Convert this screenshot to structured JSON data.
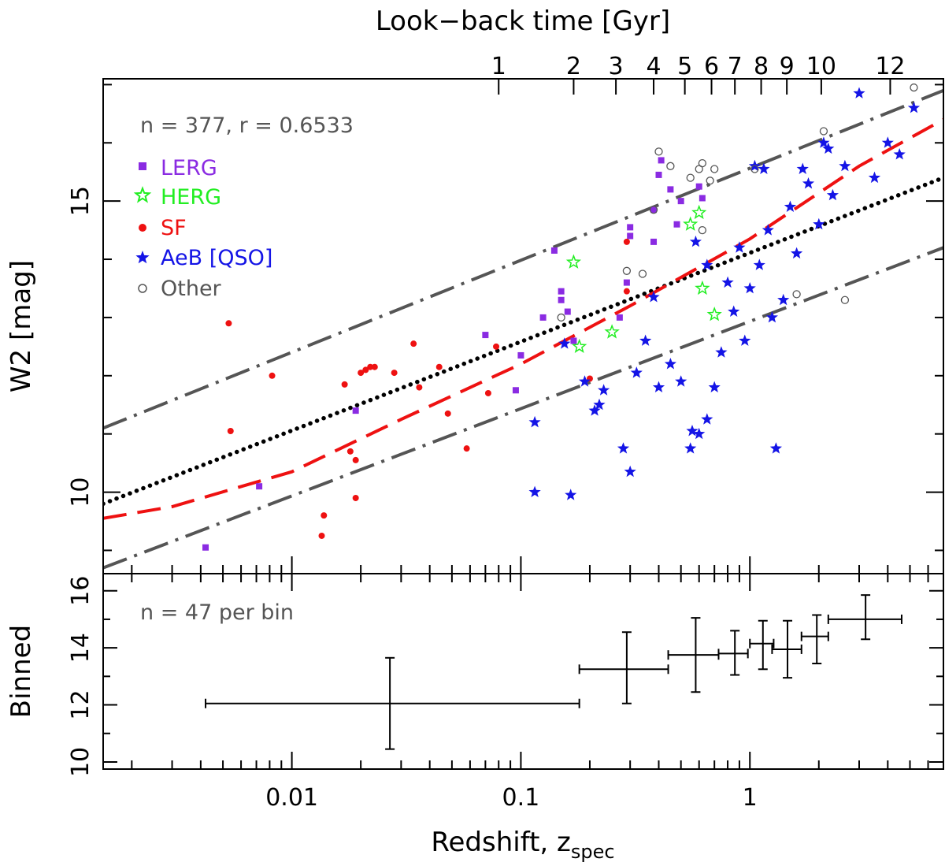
{
  "chart_data": [
    {
      "type": "scatter",
      "panel": "main",
      "xlabel": "Redshift, z",
      "xlabel_sub": "spec",
      "ylabel": "W2 [mag]",
      "top_axis_label": "Look−back time [Gyr]",
      "x_scale": "log",
      "xlim": [
        0.0015,
        7
      ],
      "ylim": [
        8.6,
        17.1
      ],
      "x_ticks": [
        0.01,
        0.1,
        1
      ],
      "x_tick_labels": [
        "0.01",
        "0.1",
        "1"
      ],
      "y_ticks": [
        10,
        15
      ],
      "y_tick_labels": [
        "10",
        "15"
      ],
      "top_ticks": [
        1,
        2,
        3,
        4,
        5,
        6,
        7,
        8,
        9,
        10,
        12
      ],
      "top_tick_labels": [
        "1",
        "2",
        "3",
        "4",
        "5",
        "6",
        "7",
        "8",
        "9",
        "10",
        "12"
      ],
      "annotation": "n = 377, r = 0.6533",
      "legend_position": "top-left",
      "series": [
        {
          "name": "LERG",
          "color": "#8a2be2",
          "marker": "square",
          "points": [
            [
              0.0042,
              9.05
            ],
            [
              0.0072,
              10.1
            ],
            [
              0.019,
              11.4
            ],
            [
              0.07,
              12.7
            ],
            [
              0.095,
              11.75
            ],
            [
              0.1,
              12.35
            ],
            [
              0.125,
              13.0
            ],
            [
              0.14,
              14.15
            ],
            [
              0.15,
              13.3
            ],
            [
              0.15,
              13.45
            ],
            [
              0.16,
              13.1
            ],
            [
              0.17,
              12.6
            ],
            [
              0.27,
              13.0
            ],
            [
              0.29,
              13.6
            ],
            [
              0.3,
              14.4
            ],
            [
              0.3,
              14.55
            ],
            [
              0.38,
              14.3
            ],
            [
              0.38,
              14.85
            ],
            [
              0.4,
              15.45
            ],
            [
              0.41,
              15.7
            ],
            [
              0.45,
              15.2
            ],
            [
              0.5,
              15.0
            ],
            [
              0.6,
              15.25
            ],
            [
              0.62,
              15.05
            ],
            [
              0.48,
              14.6
            ]
          ]
        },
        {
          "name": "HERG",
          "color": "#22ee22",
          "marker": "star-open",
          "points": [
            [
              0.17,
              13.95
            ],
            [
              0.18,
              12.5
            ],
            [
              0.25,
              12.75
            ],
            [
              0.55,
              14.6
            ],
            [
              0.6,
              14.8
            ],
            [
              0.62,
              13.5
            ],
            [
              0.7,
              13.05
            ]
          ]
        },
        {
          "name": "SF",
          "color": "#ee1111",
          "marker": "dot",
          "points": [
            [
              0.0053,
              12.9
            ],
            [
              0.0054,
              11.05
            ],
            [
              0.0082,
              12.0
            ],
            [
              0.0135,
              9.25
            ],
            [
              0.0138,
              9.6
            ],
            [
              0.017,
              11.85
            ],
            [
              0.018,
              10.7
            ],
            [
              0.019,
              10.55
            ],
            [
              0.019,
              9.9
            ],
            [
              0.02,
              12.05
            ],
            [
              0.021,
              12.1
            ],
            [
              0.022,
              12.15
            ],
            [
              0.023,
              12.15
            ],
            [
              0.028,
              12.05
            ],
            [
              0.034,
              12.55
            ],
            [
              0.036,
              11.8
            ],
            [
              0.044,
              12.15
            ],
            [
              0.048,
              11.35
            ],
            [
              0.058,
              10.75
            ],
            [
              0.072,
              11.7
            ],
            [
              0.078,
              12.5
            ],
            [
              0.2,
              11.95
            ],
            [
              0.29,
              13.45
            ],
            [
              0.29,
              14.3
            ]
          ]
        },
        {
          "name": "AeB [QSO]",
          "color": "#1414e6",
          "marker": "star",
          "points": [
            [
              0.115,
              10.0
            ],
            [
              0.115,
              11.2
            ],
            [
              0.155,
              12.55
            ],
            [
              0.165,
              9.95
            ],
            [
              0.19,
              11.9
            ],
            [
              0.21,
              11.4
            ],
            [
              0.22,
              11.5
            ],
            [
              0.23,
              11.75
            ],
            [
              0.28,
              10.75
            ],
            [
              0.3,
              10.35
            ],
            [
              0.32,
              12.05
            ],
            [
              0.35,
              12.6
            ],
            [
              0.38,
              13.35
            ],
            [
              0.4,
              11.8
            ],
            [
              0.45,
              12.2
            ],
            [
              0.5,
              11.9
            ],
            [
              0.55,
              10.75
            ],
            [
              0.56,
              11.05
            ],
            [
              0.6,
              11.0
            ],
            [
              0.65,
              11.25
            ],
            [
              0.7,
              11.8
            ],
            [
              0.75,
              12.4
            ],
            [
              0.8,
              13.6
            ],
            [
              0.9,
              14.2
            ],
            [
              1.0,
              13.5
            ],
            [
              1.1,
              13.9
            ],
            [
              1.2,
              14.5
            ],
            [
              1.3,
              10.75
            ],
            [
              1.4,
              13.3
            ],
            [
              1.5,
              14.9
            ],
            [
              1.6,
              14.1
            ],
            [
              1.8,
              15.3
            ],
            [
              2.0,
              14.6
            ],
            [
              2.1,
              16.0
            ],
            [
              2.3,
              15.1
            ],
            [
              2.6,
              15.6
            ],
            [
              3.0,
              16.85
            ],
            [
              3.5,
              15.4
            ],
            [
              4.0,
              16.0
            ],
            [
              4.5,
              15.8
            ],
            [
              5.2,
              16.6
            ],
            [
              1.05,
              15.6
            ],
            [
              1.15,
              15.55
            ],
            [
              1.7,
              15.55
            ],
            [
              2.2,
              15.9
            ],
            [
              1.25,
              13.0
            ],
            [
              0.95,
              12.6
            ],
            [
              0.85,
              13.1
            ],
            [
              0.65,
              13.9
            ],
            [
              0.58,
              14.3
            ]
          ]
        },
        {
          "name": "Other",
          "color": "#555555",
          "marker": "circle-open",
          "points": [
            [
              0.15,
              13.0
            ],
            [
              0.29,
              13.8
            ],
            [
              0.34,
              13.75
            ],
            [
              0.38,
              14.85
            ],
            [
              0.4,
              15.85
            ],
            [
              0.45,
              15.6
            ],
            [
              0.55,
              15.4
            ],
            [
              0.6,
              15.55
            ],
            [
              0.62,
              15.65
            ],
            [
              0.67,
              15.35
            ],
            [
              0.7,
              15.55
            ],
            [
              1.05,
              15.55
            ],
            [
              2.1,
              16.2
            ],
            [
              2.6,
              13.3
            ],
            [
              5.2,
              16.95
            ],
            [
              1.6,
              13.4
            ],
            [
              0.62,
              14.5
            ]
          ]
        }
      ],
      "fit_lines": [
        {
          "name": "dotted-fit",
          "color": "#000000",
          "style": "dotted",
          "x": [
            0.0015,
            7
          ],
          "y": [
            9.8,
            15.4
          ]
        },
        {
          "name": "dashed-fit",
          "color": "#ee1111",
          "style": "dashed",
          "x": [
            0.0015,
            0.003,
            0.01,
            0.03,
            0.1,
            0.3,
            1,
            3,
            7
          ],
          "y": [
            9.55,
            9.75,
            10.35,
            11.25,
            12.2,
            13.2,
            14.35,
            15.6,
            16.4
          ]
        },
        {
          "name": "upper-envelope",
          "color": "#555555",
          "style": "dashdot",
          "x": [
            0.0015,
            7
          ],
          "y": [
            11.1,
            16.9
          ]
        },
        {
          "name": "lower-envelope",
          "color": "#555555",
          "style": "dashdot",
          "x": [
            0.0015,
            7
          ],
          "y": [
            8.7,
            14.2
          ]
        }
      ]
    },
    {
      "type": "errorbar",
      "panel": "binned",
      "ylabel": "Binned",
      "annotation": "n = 47 per bin",
      "ylim": [
        9.75,
        16.6
      ],
      "y_ticks": [
        10,
        12,
        14,
        16
      ],
      "y_tick_labels": [
        "10",
        "12",
        "14",
        "16"
      ],
      "points": [
        {
          "x": 0.0268,
          "y": 12.05,
          "xlo": 0.0042,
          "xhi": 0.18,
          "ylo": 10.45,
          "yhi": 13.65
        },
        {
          "x": 0.29,
          "y": 13.25,
          "xlo": 0.18,
          "xhi": 0.44,
          "ylo": 12.05,
          "yhi": 14.55
        },
        {
          "x": 0.58,
          "y": 13.75,
          "xlo": 0.44,
          "xhi": 0.73,
          "ylo": 12.45,
          "yhi": 15.05
        },
        {
          "x": 0.86,
          "y": 13.8,
          "xlo": 0.73,
          "xhi": 0.98,
          "ylo": 13.05,
          "yhi": 14.6
        },
        {
          "x": 1.14,
          "y": 14.15,
          "xlo": 1.0,
          "xhi": 1.27,
          "ylo": 13.25,
          "yhi": 14.95
        },
        {
          "x": 1.46,
          "y": 13.95,
          "xlo": 1.25,
          "xhi": 1.68,
          "ylo": 12.95,
          "yhi": 14.95
        },
        {
          "x": 1.96,
          "y": 14.4,
          "xlo": 1.68,
          "xhi": 2.2,
          "ylo": 13.45,
          "yhi": 15.15
        },
        {
          "x": 3.2,
          "y": 15.0,
          "xlo": 2.2,
          "xhi": 4.6,
          "ylo": 14.3,
          "yhi": 15.85
        }
      ]
    }
  ]
}
